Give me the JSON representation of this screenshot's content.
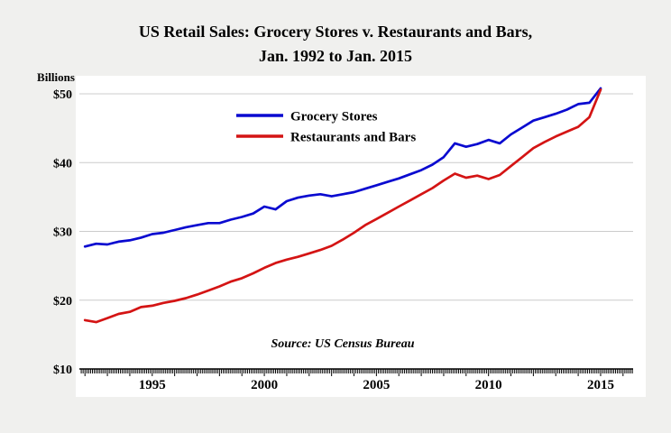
{
  "title": {
    "line1": "US Retail Sales: Grocery Stores v. Restaurants and Bars,",
    "line2": "Jan. 1992 to Jan. 2015"
  },
  "y_axis_label": "Billions",
  "source_note": "Source: US Census Bureau",
  "colors": {
    "grocery": "#0a0ad0",
    "restaurants": "#d41414",
    "background": "#f0f0ee",
    "plot_background": "#ffffff",
    "grid": "#cccccc",
    "axis": "#000000",
    "text": "#000000"
  },
  "chart_data": {
    "type": "line",
    "title": "US Retail Sales: Grocery Stores v. Restaurants and Bars, Jan. 1992 to Jan. 2015",
    "xlabel": "",
    "ylabel": "Billions",
    "xlim": [
      1991.75,
      2016.45
    ],
    "ylim": [
      10,
      52
    ],
    "x_ticks": [
      1995,
      2000,
      2005,
      2010,
      2015
    ],
    "y_ticks": [
      10,
      20,
      30,
      40,
      50
    ],
    "y_tick_labels": [
      "$10",
      "$20",
      "$30",
      "$40",
      "$50"
    ],
    "grid": "horizontal",
    "legend_position": "upper-center-inside",
    "x": [
      1992,
      1992.5,
      1993,
      1993.5,
      1994,
      1994.5,
      1995,
      1995.5,
      1996,
      1996.5,
      1997,
      1997.5,
      1998,
      1998.5,
      1999,
      1999.5,
      2000,
      2000.5,
      2001,
      2001.5,
      2002,
      2002.5,
      2003,
      2003.5,
      2004,
      2004.5,
      2005,
      2005.5,
      2006,
      2006.5,
      2007,
      2007.5,
      2008,
      2008.5,
      2009,
      2009.5,
      2010,
      2010.5,
      2011,
      2011.5,
      2012,
      2012.5,
      2013,
      2013.5,
      2014,
      2014.5,
      2015
    ],
    "series": [
      {
        "name": "Grocery Stores",
        "color": "#0a0ad0",
        "values": [
          27.8,
          28.2,
          28.1,
          28.5,
          28.7,
          29.1,
          29.6,
          29.8,
          30.2,
          30.6,
          30.9,
          31.2,
          31.2,
          31.7,
          32.1,
          32.6,
          33.6,
          33.2,
          34.4,
          34.9,
          35.2,
          35.4,
          35.1,
          35.4,
          35.7,
          36.2,
          36.7,
          37.2,
          37.7,
          38.3,
          38.9,
          39.7,
          40.8,
          42.8,
          42.3,
          42.7,
          43.3,
          42.8,
          44.1,
          45.1,
          46.1,
          46.6,
          47.1,
          47.7,
          48.5,
          48.7,
          50.8
        ]
      },
      {
        "name": "Restaurants and Bars",
        "color": "#d41414",
        "values": [
          17.1,
          16.8,
          17.4,
          18.0,
          18.3,
          19.0,
          19.2,
          19.6,
          19.9,
          20.3,
          20.8,
          21.4,
          22.0,
          22.7,
          23.2,
          23.9,
          24.7,
          25.4,
          25.9,
          26.3,
          26.8,
          27.3,
          27.9,
          28.8,
          29.8,
          30.9,
          31.8,
          32.7,
          33.6,
          34.5,
          35.4,
          36.3,
          37.4,
          38.4,
          37.8,
          38.1,
          37.6,
          38.2,
          39.5,
          40.8,
          42.1,
          43.0,
          43.8,
          44.5,
          45.2,
          46.6,
          50.6
        ]
      }
    ]
  }
}
